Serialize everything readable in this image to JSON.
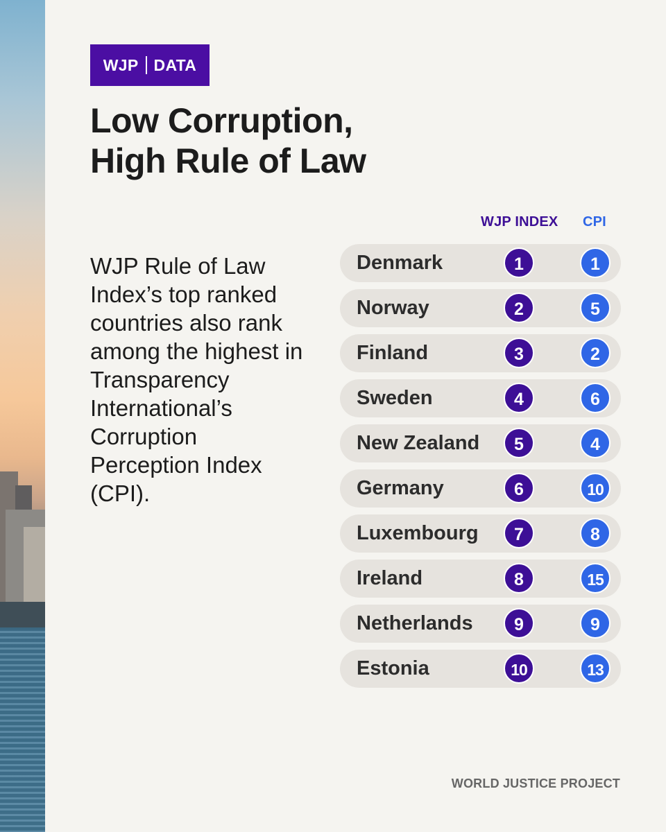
{
  "tag": {
    "left": "WJP",
    "right": "DATA"
  },
  "title": {
    "line1": "Low Corruption,",
    "line2": "High Rule of Law"
  },
  "intro": "WJP Rule of Law Index’s top ranked countries also rank among the highest in Transparency International’s Corruption Perception Index (CPI).",
  "table": {
    "headers": {
      "wjp": "WJP INDEX",
      "cpi": "CPI"
    },
    "rows": [
      {
        "country": "Denmark",
        "wjp": "1",
        "cpi": "1"
      },
      {
        "country": "Norway",
        "wjp": "2",
        "cpi": "5"
      },
      {
        "country": "Finland",
        "wjp": "3",
        "cpi": "2"
      },
      {
        "country": "Sweden",
        "wjp": "4",
        "cpi": "6"
      },
      {
        "country": "New Zealand",
        "wjp": "5",
        "cpi": "4"
      },
      {
        "country": "Germany",
        "wjp": "6",
        "cpi": "10"
      },
      {
        "country": "Luxembourg",
        "wjp": "7",
        "cpi": "8"
      },
      {
        "country": "Ireland",
        "wjp": "8",
        "cpi": "15"
      },
      {
        "country": "Netherlands",
        "wjp": "9",
        "cpi": "9"
      },
      {
        "country": "Estonia",
        "wjp": "10",
        "cpi": "13"
      }
    ]
  },
  "footer": "WORLD JUSTICE PROJECT",
  "colors": {
    "wjp_purple": "#3d0f96",
    "tag_purple": "#4b0ea3",
    "cpi_blue": "#2f66e6",
    "background": "#f5f4f0"
  }
}
